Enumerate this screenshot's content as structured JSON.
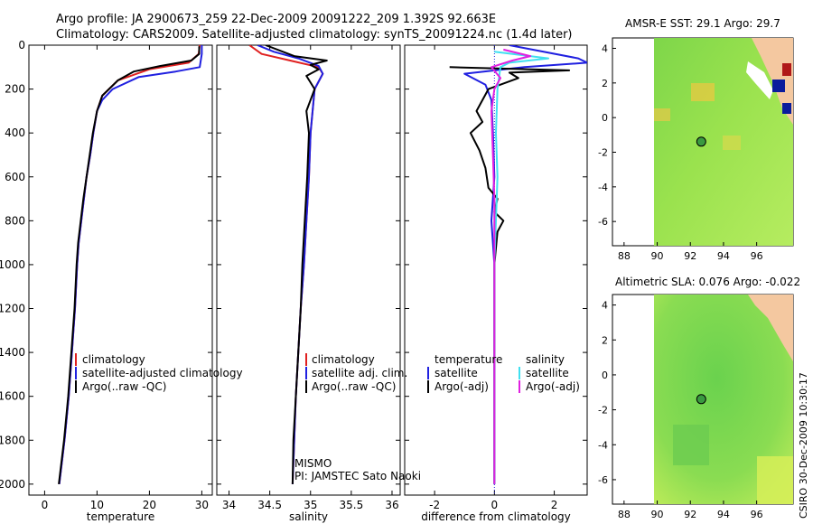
{
  "title_line1": "Argo profile: JA 2900673_259 22-Dec-2009 20091222_209 1.392S 92.663E",
  "title_line2": "Climatology: CARS2009. Satellite-adjusted climatology: synTS_20091224.nc (1.4d later)",
  "side_label": "CSIRO 30-Dec-2009 10:30:17",
  "chart_data": [
    {
      "type": "line",
      "id": "temperature",
      "xlabel": "temperature",
      "xticks": [
        0,
        10,
        20,
        30
      ],
      "xlim": [
        -3,
        32
      ],
      "ylim": [
        0,
        2050
      ],
      "yticks": [
        0,
        200,
        400,
        600,
        800,
        1000,
        1200,
        1400,
        1600,
        1800,
        2000
      ],
      "legend": [
        "climatology",
        "satellite-adjusted climatology",
        "Argo(..raw -QC)"
      ],
      "series": [
        {
          "name": "climatology",
          "color": "#e02020",
          "points": [
            [
              29.6,
              0
            ],
            [
              29.4,
              40
            ],
            [
              27.5,
              80
            ],
            [
              20,
              110
            ],
            [
              14,
              160
            ],
            [
              11,
              230
            ],
            [
              10,
              300
            ],
            [
              9.3,
              400
            ],
            [
              8.7,
              500
            ],
            [
              8,
              600
            ],
            [
              7.5,
              700
            ],
            [
              7,
              800
            ],
            [
              6.5,
              900
            ],
            [
              6.2,
              1000
            ],
            [
              5.8,
              1200
            ],
            [
              5.2,
              1400
            ],
            [
              4.6,
              1600
            ],
            [
              3.8,
              1800
            ],
            [
              2.8,
              2000
            ]
          ]
        },
        {
          "name": "satellite-adjusted climatology",
          "color": "#2020e0",
          "points": [
            [
              30,
              0
            ],
            [
              30,
              40
            ],
            [
              29.6,
              100
            ],
            [
              25,
              120
            ],
            [
              18,
              145
            ],
            [
              13,
              200
            ],
            [
              11,
              250
            ],
            [
              10,
              300
            ],
            [
              9.3,
              400
            ],
            [
              8.7,
              500
            ],
            [
              8,
              600
            ],
            [
              7.5,
              700
            ],
            [
              7,
              800
            ],
            [
              6.5,
              900
            ],
            [
              6.2,
              1000
            ],
            [
              5.8,
              1200
            ],
            [
              5.2,
              1400
            ],
            [
              4.6,
              1600
            ],
            [
              3.8,
              1800
            ],
            [
              2.8,
              2000
            ]
          ]
        },
        {
          "name": "Argo(..raw -QC)",
          "color": "#000000",
          "points": [
            [
              29.5,
              5
            ],
            [
              29.5,
              40
            ],
            [
              28,
              70
            ],
            [
              22,
              95
            ],
            [
              17,
              120
            ],
            [
              14,
              160
            ],
            [
              11,
              230
            ],
            [
              10,
              300
            ],
            [
              9.2,
              400
            ],
            [
              8.6,
              500
            ],
            [
              8,
              600
            ],
            [
              7.4,
              700
            ],
            [
              6.9,
              800
            ],
            [
              6.4,
              900
            ],
            [
              6.1,
              1000
            ],
            [
              5.7,
              1200
            ],
            [
              5.1,
              1400
            ],
            [
              4.5,
              1600
            ],
            [
              3.7,
              1800
            ],
            [
              2.7,
              2000
            ]
          ]
        }
      ]
    },
    {
      "type": "line",
      "id": "salinity",
      "xlabel": "salinity",
      "xticks": [
        34,
        34.5,
        35,
        35.5,
        36
      ],
      "xtick_labels": [
        "34",
        "34.5",
        "35",
        "35.5",
        "36"
      ],
      "xlim": [
        33.85,
        36.1
      ],
      "ylim": [
        0,
        2050
      ],
      "legend": [
        "climatology",
        "satellite adj. clim.",
        "Argo(..raw -QC)"
      ],
      "annotation_lines": [
        "MISMO",
        "PI: JAMSTEC Sato Naoki"
      ],
      "series": [
        {
          "name": "climatology",
          "color": "#e02020",
          "points": [
            [
              34.25,
              0
            ],
            [
              34.4,
              40
            ],
            [
              34.75,
              70
            ],
            [
              35.1,
              100
            ],
            [
              35.15,
              130
            ],
            [
              35.05,
              200
            ],
            [
              35,
              400
            ],
            [
              34.98,
              600
            ],
            [
              34.95,
              800
            ],
            [
              34.92,
              1000
            ],
            [
              34.88,
              1200
            ],
            [
              34.85,
              1400
            ],
            [
              34.82,
              1600
            ],
            [
              34.8,
              1800
            ],
            [
              34.78,
              2000
            ]
          ]
        },
        {
          "name": "satellite adj. clim.",
          "color": "#2020e0",
          "points": [
            [
              34.35,
              0
            ],
            [
              34.55,
              30
            ],
            [
              34.85,
              60
            ],
            [
              35.1,
              95
            ],
            [
              35.15,
              130
            ],
            [
              35.05,
              200
            ],
            [
              35,
              400
            ],
            [
              34.98,
              600
            ],
            [
              34.95,
              800
            ],
            [
              34.92,
              1000
            ],
            [
              34.88,
              1200
            ],
            [
              34.85,
              1400
            ],
            [
              34.82,
              1600
            ],
            [
              34.8,
              1800
            ],
            [
              34.78,
              2000
            ]
          ]
        },
        {
          "name": "Argo(..raw -QC)",
          "color": "#000000",
          "points": [
            [
              34.45,
              0
            ],
            [
              34.8,
              50
            ],
            [
              35.2,
              70
            ],
            [
              35,
              90
            ],
            [
              35.1,
              110
            ],
            [
              34.95,
              140
            ],
            [
              35.05,
              200
            ],
            [
              34.95,
              300
            ],
            [
              34.98,
              400
            ],
            [
              34.96,
              600
            ],
            [
              34.93,
              800
            ],
            [
              34.9,
              1000
            ],
            [
              34.88,
              1200
            ],
            [
              34.85,
              1400
            ],
            [
              34.82,
              1600
            ],
            [
              34.79,
              1800
            ],
            [
              34.78,
              2000
            ]
          ]
        }
      ]
    },
    {
      "type": "line",
      "id": "difference",
      "xlabel": "difference from climatology",
      "xticks": [
        -2,
        0,
        2
      ],
      "xlim": [
        -3,
        3.1
      ],
      "ylim": [
        0,
        2050
      ],
      "legend_titles": [
        "temperature",
        "salinity"
      ],
      "legend": [
        "satellite",
        "Argo(-adj)",
        "satellite",
        "Argo(-adj)"
      ],
      "series": [
        {
          "name": "temperature satellite",
          "color": "#2020e0",
          "points": [
            [
              0.5,
              0
            ],
            [
              2.8,
              60
            ],
            [
              3.1,
              80
            ],
            [
              1,
              100
            ],
            [
              -1,
              130
            ],
            [
              -0.3,
              180
            ],
            [
              -0.1,
              250
            ],
            [
              -0.05,
              400
            ],
            [
              0,
              600
            ],
            [
              -0.1,
              800
            ],
            [
              0,
              1000
            ],
            [
              0,
              1400
            ],
            [
              0,
              2000
            ]
          ]
        },
        {
          "name": "temperature Argo(-adj)",
          "color": "#000000",
          "points": [
            [
              -1.5,
              100
            ],
            [
              2.5,
              115
            ],
            [
              0.5,
              125
            ],
            [
              0.8,
              150
            ],
            [
              -0.2,
              200
            ],
            [
              -0.6,
              300
            ],
            [
              -0.4,
              350
            ],
            [
              -0.8,
              400
            ],
            [
              -0.5,
              480
            ],
            [
              -0.3,
              560
            ],
            [
              -0.2,
              650
            ],
            [
              0.1,
              700
            ],
            [
              0,
              760
            ],
            [
              0.3,
              800
            ],
            [
              0.1,
              850
            ],
            [
              0,
              1000
            ],
            [
              0,
              1400
            ],
            [
              0,
              2000
            ]
          ]
        },
        {
          "name": "salinity satellite",
          "color": "#40e0f0",
          "points": [
            [
              0,
              30
            ],
            [
              1.8,
              60
            ],
            [
              0.5,
              80
            ],
            [
              0.2,
              100
            ],
            [
              0.1,
              200
            ],
            [
              0.05,
              400
            ],
            [
              0.1,
              600
            ],
            [
              0.05,
              800
            ],
            [
              0,
              1000
            ],
            [
              0,
              1400
            ],
            [
              0,
              2000
            ]
          ]
        },
        {
          "name": "salinity Argo(-adj)",
          "color": "#e020e0",
          "points": [
            [
              0.3,
              20
            ],
            [
              1.2,
              50
            ],
            [
              0.6,
              70
            ],
            [
              -0.1,
              100
            ],
            [
              0.2,
              150
            ],
            [
              0,
              200
            ],
            [
              -0.1,
              300
            ],
            [
              -0.05,
              500
            ],
            [
              0,
              700
            ],
            [
              0,
              1000
            ],
            [
              0,
              2000
            ]
          ]
        }
      ]
    },
    {
      "type": "heatmap",
      "id": "sst-map",
      "title": "AMSR-E SST: 29.1 Argo: 29.7",
      "xticks": [
        88,
        90,
        92,
        94,
        96
      ],
      "yticks": [
        4,
        2,
        0,
        -2,
        -4,
        -6
      ],
      "xlim": [
        87.3,
        98.2
      ],
      "ylim": [
        -7.4,
        4.6
      ],
      "argo_position": {
        "lon": 92.66,
        "lat": -1.39
      }
    },
    {
      "type": "heatmap",
      "id": "sla-map",
      "title": "Altimetric SLA: 0.076 Argo: -0.022",
      "xticks": [
        88,
        90,
        92,
        94,
        96
      ],
      "yticks": [
        4,
        2,
        0,
        -2,
        -4,
        -6
      ],
      "xlim": [
        87.3,
        98.2
      ],
      "ylim": [
        -7.4,
        4.6
      ],
      "argo_position": {
        "lon": 92.66,
        "lat": -1.39
      }
    }
  ]
}
